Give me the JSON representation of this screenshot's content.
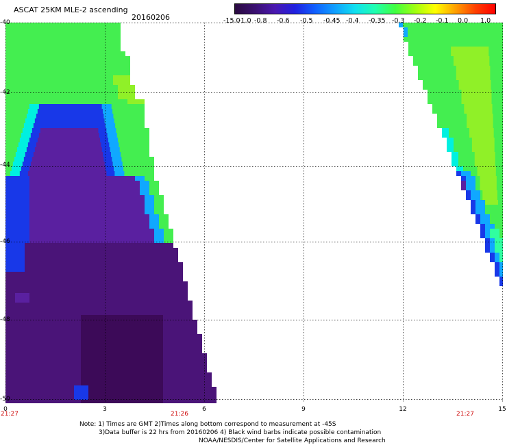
{
  "header": {
    "title": "ASCAT 25KM MLE-2 ascending",
    "date": "20160206"
  },
  "colorbar": {
    "tick_labels": [
      "-15.0",
      "-1.0",
      "-0.8",
      "-0.6",
      "-0.5",
      "-0.45",
      "-0.4",
      "-0.35",
      "-0.3",
      "-0.2",
      "-0.1",
      "0.0",
      "1.0"
    ],
    "colors": [
      "#2a0a40",
      "#3a1070",
      "#4a18b0",
      "#2020e0",
      "#1060ff",
      "#10a0ff",
      "#10e0f0",
      "#20ffb0",
      "#40ff40",
      "#a0ff10",
      "#ffff00",
      "#ffa000",
      "#ff4000",
      "#ff0000"
    ]
  },
  "map": {
    "y_tick_labels": [
      "-40",
      "-42",
      "-44",
      "-46",
      "-48",
      "-50"
    ],
    "x_tick_labels": [
      "0",
      "3",
      "6",
      "9",
      "12",
      "15"
    ],
    "time_labels": [
      "21:27",
      "21:26",
      "21:27"
    ],
    "colors": {
      "deep_purple": "#3c0a58",
      "purple": "#4a1478",
      "violet": "#5a20a0",
      "blue": "#1838e8",
      "cyan_blue": "#10a8ff",
      "cyan": "#00f0e0",
      "aqua": "#30ffa0",
      "green": "#44ee50",
      "lime": "#90f028"
    }
  },
  "notes": {
    "line1": "Note: 1) Times are GMT 2)Times along bottom correspond to measurement at -45S",
    "line2": "3)Data buffer is 22 hrs from 20160206 4) Black wind barbs indicate possible contamination",
    "line3": "NOAA/NESDIS/Center for Satellite Applications and Research"
  }
}
